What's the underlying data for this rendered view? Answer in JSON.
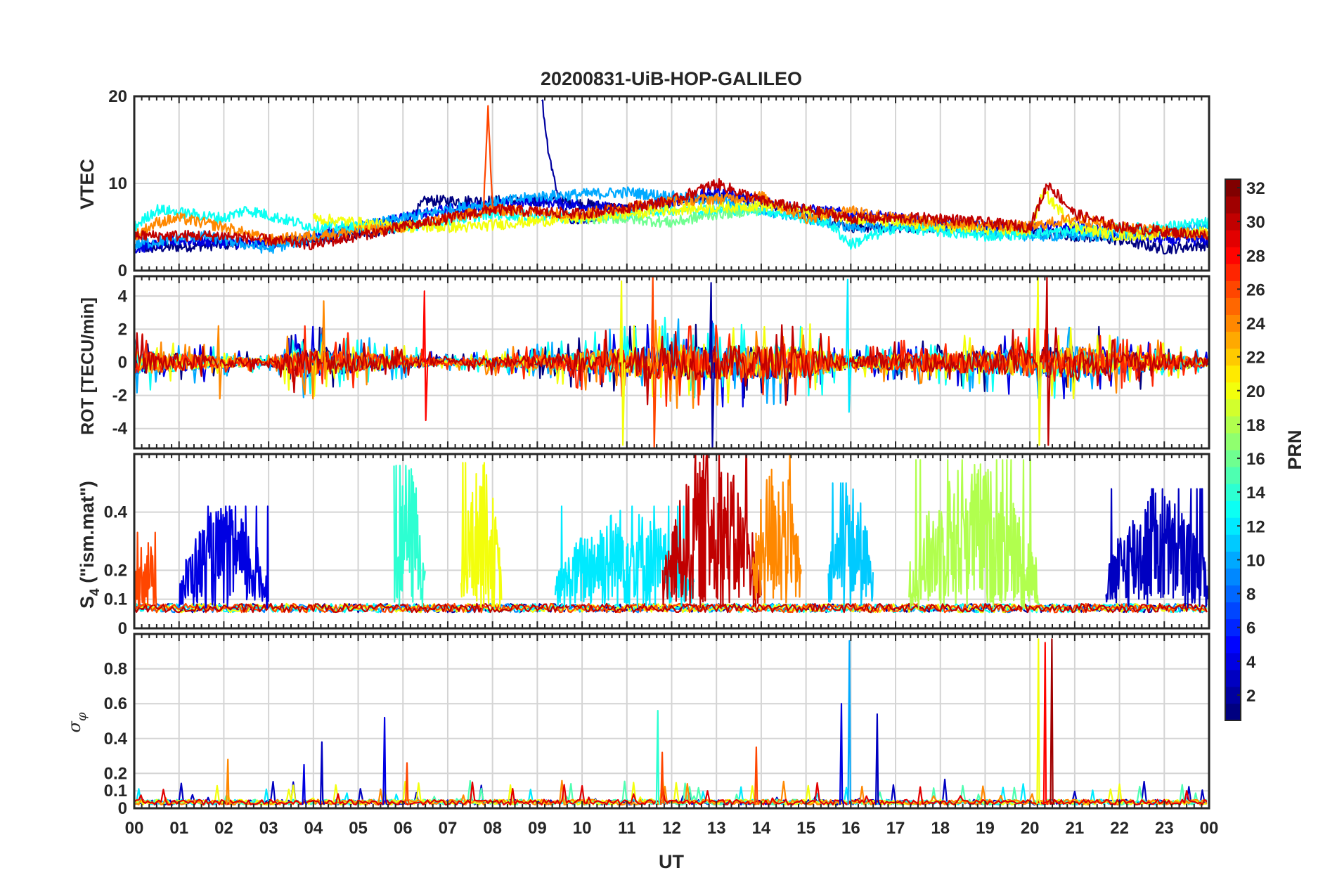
{
  "figure": {
    "title": "20200831-UiB-HOP-GALILEO",
    "xlabel": "UT",
    "x_tick_labels": [
      "00",
      "01",
      "02",
      "03",
      "04",
      "05",
      "06",
      "07",
      "08",
      "09",
      "10",
      "11",
      "12",
      "13",
      "14",
      "15",
      "16",
      "17",
      "18",
      "19",
      "20",
      "21",
      "22",
      "23",
      "00"
    ]
  },
  "colorbar": {
    "label": "PRN",
    "range": [
      1,
      32
    ],
    "tick_labels": [
      "2",
      "4",
      "6",
      "8",
      "10",
      "12",
      "14",
      "16",
      "18",
      "20",
      "22",
      "24",
      "26",
      "28",
      "30",
      "32"
    ],
    "colormap": "jet"
  },
  "chart_data": [
    {
      "type": "line",
      "panel": "VTEC",
      "title": "20200831-UiB-HOP-GALILEO",
      "xlabel": "",
      "ylabel": "VTEC",
      "xlim": [
        0,
        24
      ],
      "ylim": [
        0,
        20
      ],
      "y_tick_labels": [
        "0",
        "10",
        "20"
      ],
      "grid": true,
      "x_unit": "hours UT",
      "series_by_prn": [
        {
          "prn": 1,
          "x": [
            0,
            2,
            4,
            6,
            6.5,
            8,
            9.5,
            11,
            13,
            14,
            16,
            18,
            20,
            22,
            23,
            24
          ],
          "y": [
            2.5,
            3,
            3.5,
            5,
            8,
            8,
            8,
            7,
            8.5,
            8,
            5,
            5,
            4.5,
            3.5,
            2.5,
            3
          ]
        },
        {
          "prn": 2,
          "x": [
            9.1,
            9.2,
            9.35,
            9.5,
            9.7,
            10,
            10.5
          ],
          "y": [
            20,
            15,
            11,
            8,
            6,
            6,
            6.5
          ]
        },
        {
          "prn": 4,
          "x": [
            0,
            1,
            3,
            5,
            7,
            9,
            11,
            13,
            15,
            17,
            19,
            21,
            23,
            24
          ],
          "y": [
            2.5,
            3.5,
            3,
            5,
            7,
            8,
            7,
            9,
            7,
            6,
            5,
            5,
            3.5,
            3.5
          ]
        },
        {
          "prn": 10,
          "x": [
            0,
            1.5,
            3,
            5,
            7,
            9,
            11,
            13,
            15,
            16,
            18,
            20,
            22,
            24
          ],
          "y": [
            3,
            4,
            2.5,
            5,
            7,
            8.5,
            9,
            8,
            6,
            5,
            5,
            4,
            4,
            5
          ]
        },
        {
          "prn": 13,
          "x": [
            0,
            0.5,
            2,
            2.5,
            4,
            6,
            8,
            10,
            12,
            14,
            15.5,
            16,
            17,
            19,
            21,
            23,
            24
          ],
          "y": [
            5,
            7,
            6,
            7,
            5,
            5,
            6.5,
            6,
            7,
            7,
            5.5,
            3,
            5,
            4,
            4.5,
            5,
            5.5
          ]
        },
        {
          "prn": 16,
          "x": [
            10,
            11,
            12,
            13,
            14
          ],
          "y": [
            6,
            6,
            5.5,
            6.5,
            7
          ]
        },
        {
          "prn": 20,
          "x": [
            4,
            6,
            7.5,
            8.5,
            10,
            12,
            14,
            16,
            18,
            20,
            20.3,
            21,
            22,
            24
          ],
          "y": [
            6,
            5,
            5,
            5.5,
            6,
            7,
            7.5,
            6,
            5,
            4.5,
            9,
            5,
            4,
            4.5
          ]
        },
        {
          "prn": 24,
          "x": [
            0,
            0.5,
            1,
            2,
            3,
            4,
            6,
            8,
            10,
            12,
            14,
            15,
            16,
            17,
            18,
            20,
            21,
            22,
            24
          ],
          "y": [
            4,
            5.5,
            6,
            5,
            3.5,
            4,
            5,
            7,
            6.5,
            8,
            8.5,
            6,
            7,
            6,
            5.5,
            5,
            6,
            5,
            4
          ]
        },
        {
          "prn": 26,
          "x": [
            7.8,
            7.9,
            8.0,
            8.1
          ],
          "y": [
            7,
            19,
            7,
            7
          ]
        },
        {
          "prn": 30,
          "x": [
            0,
            2,
            4,
            6,
            7,
            8,
            10,
            12,
            13,
            14,
            16,
            18,
            20,
            20.4,
            21,
            22,
            23,
            24
          ],
          "y": [
            4,
            4,
            3,
            5,
            6,
            7,
            6.5,
            8,
            10,
            8,
            6,
            6,
            5,
            10,
            6.5,
            5,
            4.5,
            4
          ]
        }
      ]
    },
    {
      "type": "line",
      "panel": "ROT",
      "ylabel": "ROT [TECU/min]",
      "xlim": [
        0,
        24
      ],
      "ylim": [
        -5.2,
        5.2
      ],
      "y_tick_labels": [
        "-4",
        "-2",
        "0",
        "2",
        "4"
      ],
      "grid": true,
      "spikes": [
        {
          "x": 6.5,
          "min": -3.5,
          "max": 4.3,
          "prn": 28
        },
        {
          "x": 10.9,
          "min": -5,
          "max": 4.9,
          "prn": 20
        },
        {
          "x": 11.6,
          "min": -5.2,
          "max": 5.2,
          "prn": 26
        },
        {
          "x": 12.9,
          "min": -5.2,
          "max": 4.8,
          "prn": 2
        },
        {
          "x": 15.95,
          "min": -3,
          "max": 5,
          "prn": 12
        },
        {
          "x": 20.2,
          "min": -5,
          "max": 5.2,
          "prn": 20
        },
        {
          "x": 20.4,
          "min": -5,
          "max": 5.2,
          "prn": 30
        },
        {
          "x": 4.25,
          "min": -1,
          "max": 3.7,
          "prn": 24
        },
        {
          "x": 1.9,
          "min": -2.2,
          "max": 2.2,
          "prn": 24
        }
      ],
      "envelope": {
        "x": [
          0,
          3,
          3.7,
          7,
          9.4,
          12,
          15,
          16,
          21,
          24
        ],
        "amplitude": [
          1.2,
          0.3,
          1.5,
          0.3,
          0.8,
          1.8,
          1.6,
          0.6,
          1.6,
          0.4
        ]
      }
    },
    {
      "type": "line",
      "panel": "S4",
      "ylabel": "S4 (\"ism.mat\")",
      "xlim": [
        0,
        24
      ],
      "ylim": [
        0,
        0.6
      ],
      "y_tick_labels": [
        "0",
        "0.1",
        "0.2",
        "0.4"
      ],
      "grid": true,
      "baseline": 0.07,
      "bursts": [
        {
          "x_start": 0,
          "x_end": 0.5,
          "peak": 0.33,
          "prn": 26
        },
        {
          "x_start": 1.0,
          "x_end": 3.0,
          "peak": 0.42,
          "prn": 4
        },
        {
          "x_start": 5.8,
          "x_end": 6.5,
          "peak": 0.56,
          "prn": 14
        },
        {
          "x_start": 7.3,
          "x_end": 8.2,
          "peak": 0.57,
          "prn": 20
        },
        {
          "x_start": 9.4,
          "x_end": 12.5,
          "peak": 0.42,
          "prn": 12
        },
        {
          "x_start": 11.8,
          "x_end": 14.0,
          "peak": 0.6,
          "prn": 30
        },
        {
          "x_start": 13.8,
          "x_end": 14.9,
          "peak": 0.6,
          "prn": 24
        },
        {
          "x_start": 15.5,
          "x_end": 16.5,
          "peak": 0.5,
          "prn": 11
        },
        {
          "x_start": 17.3,
          "x_end": 20.2,
          "peak": 0.58,
          "prn": 18
        },
        {
          "x_start": 21.7,
          "x_end": 24,
          "peak": 0.48,
          "prn": 3
        }
      ]
    },
    {
      "type": "line",
      "panel": "sigma_phi",
      "ylabel": "σφ",
      "xlim": [
        0,
        24
      ],
      "ylim": [
        0,
        1
      ],
      "y_tick_labels": [
        "0",
        "0.1",
        "0.2",
        "0.4",
        "0.6",
        "0.8"
      ],
      "grid": true,
      "baseline": 0.02,
      "spikes": [
        {
          "x": 2.1,
          "peak": 0.28,
          "prn": 24
        },
        {
          "x": 3.8,
          "peak": 0.25,
          "prn": 4
        },
        {
          "x": 4.2,
          "peak": 0.38,
          "prn": 3
        },
        {
          "x": 5.6,
          "peak": 0.52,
          "prn": 4
        },
        {
          "x": 6.1,
          "peak": 0.26,
          "prn": 26
        },
        {
          "x": 11.7,
          "peak": 0.56,
          "prn": 14
        },
        {
          "x": 11.8,
          "peak": 0.32,
          "prn": 26
        },
        {
          "x": 13.9,
          "peak": 0.35,
          "prn": 26
        },
        {
          "x": 15.8,
          "peak": 0.6,
          "prn": 4
        },
        {
          "x": 15.98,
          "peak": 0.96,
          "prn": 10
        },
        {
          "x": 16.6,
          "peak": 0.54,
          "prn": 3
        },
        {
          "x": 20.2,
          "peak": 0.97,
          "prn": 20
        },
        {
          "x": 20.35,
          "peak": 0.95,
          "prn": 28
        },
        {
          "x": 20.5,
          "peak": 0.97,
          "prn": 31
        }
      ]
    }
  ]
}
